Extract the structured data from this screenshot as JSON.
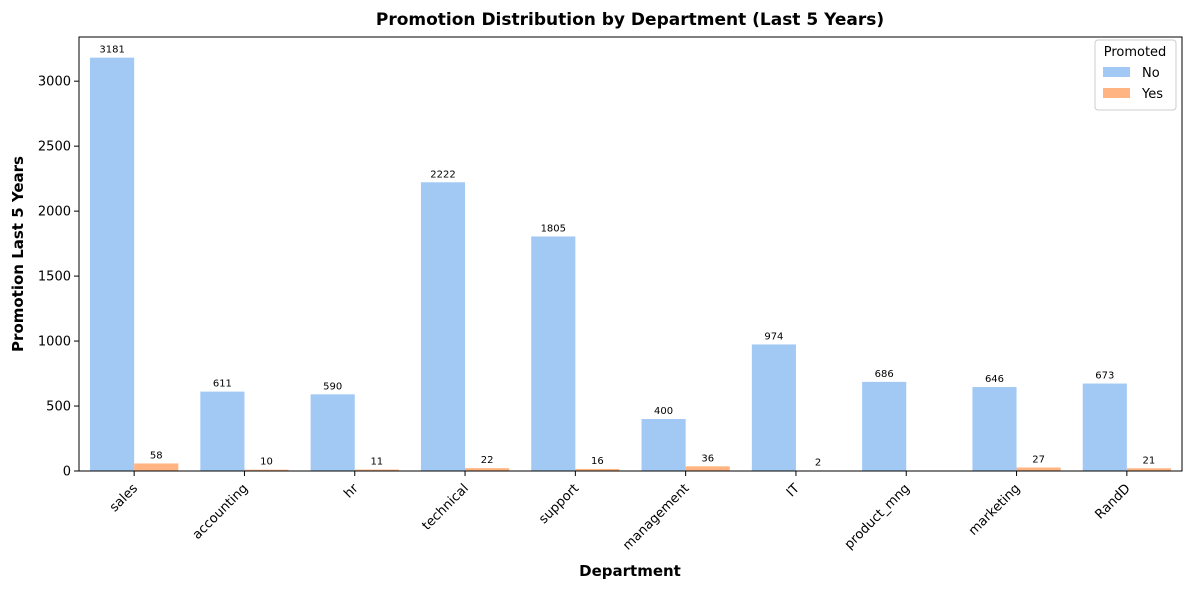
{
  "chart_data": {
    "type": "bar",
    "title": "Promotion Distribution by Department (Last 5 Years)",
    "xlabel": "Department",
    "ylabel": "Promotion Last 5 Years",
    "categories": [
      "sales",
      "accounting",
      "hr",
      "technical",
      "support",
      "management",
      "IT",
      "product_mng",
      "marketing",
      "RandD"
    ],
    "series": [
      {
        "name": "No",
        "color": "#a1c9f4",
        "values": [
          3181,
          611,
          590,
          2222,
          1805,
          400,
          974,
          686,
          646,
          673
        ]
      },
      {
        "name": "Yes",
        "color": "#ffb482",
        "values": [
          58,
          10,
          11,
          22,
          16,
          36,
          2,
          null,
          27,
          21
        ]
      }
    ],
    "ylim": [
      0,
      3340
    ],
    "yticks": [
      0,
      500,
      1000,
      1500,
      2000,
      2500,
      3000
    ],
    "legend": {
      "title": "Promoted",
      "position": "top-right"
    },
    "grid": false
  }
}
